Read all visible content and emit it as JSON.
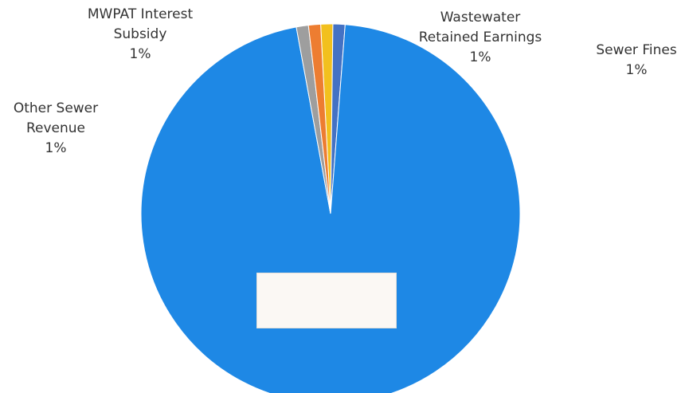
{
  "chart_data": {
    "type": "pie",
    "slices": [
      {
        "label": "Wastewater Retained Earnings",
        "percent": "1%",
        "value": 1,
        "color": "#f2c01e"
      },
      {
        "label": "Sewer Fines",
        "percent": "1%",
        "value": 1,
        "color": "#4472c4"
      },
      {
        "label": "",
        "percent": "",
        "value": 93,
        "color": "#1e88e5"
      },
      {
        "label": "Other Sewer Revenue",
        "percent": "1%",
        "value": 1,
        "color": "#9e9e9e"
      },
      {
        "label": "MWPAT Interest Subsidy",
        "percent": "1%",
        "value": 1,
        "color": "#ed7d31"
      }
    ],
    "start_angle_deg": -3,
    "legend": "none",
    "title": ""
  },
  "labels": {
    "mwpat_line1": "MWPAT Interest",
    "mwpat_line2": "Subsidy",
    "mwpat_pct": "1%",
    "wastewater_line1": "Wastewater",
    "wastewater_line2": "Retained Earnings",
    "wastewater_pct": "1%",
    "sewer_fines_line1": "Sewer Fines",
    "sewer_fines_pct": "1%",
    "other_line1": "Other Sewer",
    "other_line2": "Revenue",
    "other_pct": "1%"
  }
}
